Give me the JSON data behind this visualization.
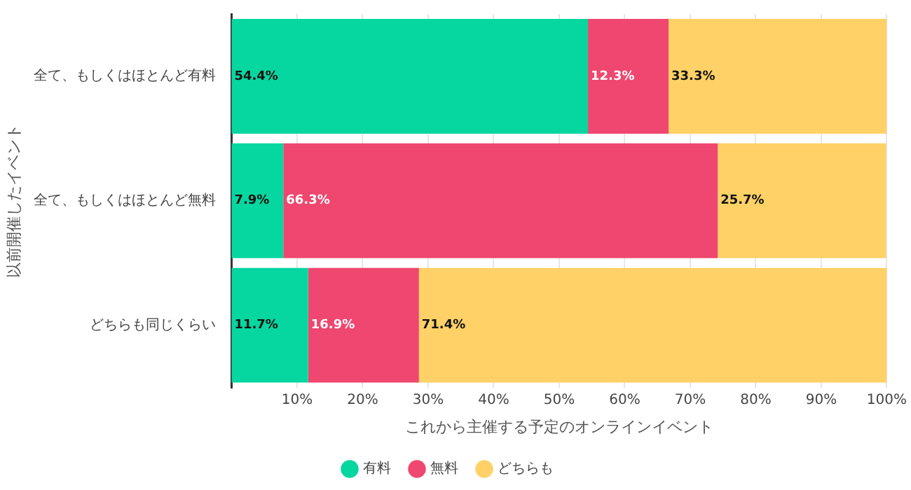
{
  "chart_data": {
    "type": "bar",
    "orientation": "horizontal",
    "stacked": true,
    "categories": [
      "全て、もしくはほとんど有料",
      "全て、もしくはほとんど無料",
      "どちらも同じくらい"
    ],
    "series": [
      {
        "name": "有料",
        "color": "#06d6a0",
        "values": [
          54.4,
          7.9,
          11.7
        ],
        "value_labels": [
          "54.4%",
          "7.9%",
          "11.7%"
        ]
      },
      {
        "name": "無料",
        "color": "#ef476f",
        "values": [
          12.3,
          66.3,
          16.9
        ],
        "value_labels": [
          "12.3%",
          "66.3%",
          "16.9%"
        ]
      },
      {
        "name": "どちらも",
        "color": "#ffd166",
        "values": [
          33.3,
          25.7,
          71.4
        ],
        "value_labels": [
          "33.3%",
          "25.7%",
          "71.4%"
        ]
      }
    ],
    "xlabel": "これから主催する予定のオンラインイベント",
    "ylabel": "以前開催したイベント",
    "xlim": [
      0,
      100
    ],
    "xticks": [
      {
        "value": 10,
        "label": "10%"
      },
      {
        "value": 20,
        "label": "20%"
      },
      {
        "value": 30,
        "label": "30%"
      },
      {
        "value": 40,
        "label": "40%"
      },
      {
        "value": 50,
        "label": "50%"
      },
      {
        "value": 60,
        "label": "60%"
      },
      {
        "value": 70,
        "label": "70%"
      },
      {
        "value": 80,
        "label": "80%"
      },
      {
        "value": 90,
        "label": "90%"
      },
      {
        "value": 100,
        "label": "100%"
      }
    ],
    "grid": "x",
    "legend": "bottom"
  }
}
